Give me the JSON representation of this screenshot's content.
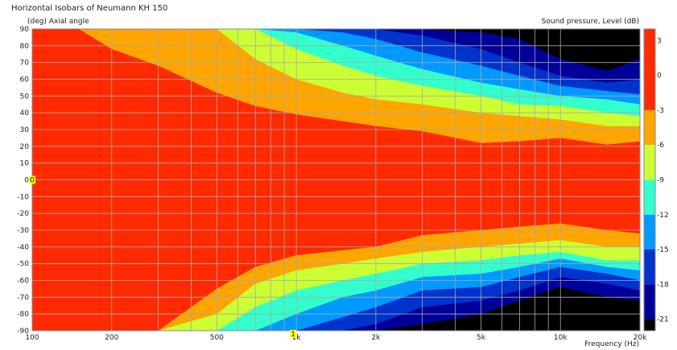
{
  "chart_data": {
    "type": "heatmap",
    "title": "Horizontal Isobars of Neumann KH 150",
    "ylabel": "(deg)  Axial angle",
    "xlabel": "Frequency  (Hz)",
    "colorbar_label": "Sound pressure, Level  (dB)",
    "x_scale": "log",
    "xlim": [
      100,
      20000
    ],
    "ylim": [
      -90,
      90
    ],
    "grid": true,
    "x_ticks": [
      {
        "value": 100,
        "label": "100"
      },
      {
        "value": 200,
        "label": "200"
      },
      {
        "value": 500,
        "label": "500"
      },
      {
        "value": 1000,
        "label": "1k"
      },
      {
        "value": 2000,
        "label": "2k"
      },
      {
        "value": 5000,
        "label": "5k"
      },
      {
        "value": 10000,
        "label": "10k"
      },
      {
        "value": 20000,
        "label": "20k"
      }
    ],
    "y_ticks": [
      90,
      80,
      70,
      60,
      50,
      40,
      30,
      20,
      10,
      0,
      -10,
      -20,
      -30,
      -40,
      -50,
      -60,
      -70,
      -80,
      -90
    ],
    "y_tick_labels": [
      "90",
      "80",
      "70",
      "60",
      "50",
      "40",
      "30",
      "20",
      "10",
      "0",
      "-10",
      "-20",
      "-30",
      "-40",
      "-50",
      "-60",
      "-70",
      "-80",
      "-90"
    ],
    "markers": [
      {
        "axis": "y",
        "value": 0,
        "label": "0"
      },
      {
        "axis": "x",
        "value": 1000,
        "label": "1"
      }
    ],
    "colorbar": {
      "range": [
        -22,
        4
      ],
      "ticks": [
        3,
        0,
        -3,
        -6,
        -9,
        -12,
        -15,
        -18,
        -21
      ],
      "tick_labels": [
        "3",
        "0",
        "-3",
        "-6",
        "-9",
        "-12",
        "-15",
        "-18",
        "-21"
      ]
    },
    "levels": [
      {
        "min": -3,
        "max": 4,
        "color": "#ff2a00"
      },
      {
        "min": -6,
        "max": -3,
        "color": "#ffa500"
      },
      {
        "min": -9,
        "max": -6,
        "color": "#ccff33"
      },
      {
        "min": -12,
        "max": -9,
        "color": "#33ffcc"
      },
      {
        "min": -15,
        "max": -12,
        "color": "#0099ff"
      },
      {
        "min": -18,
        "max": -15,
        "color": "#0033cc"
      },
      {
        "min": -21,
        "max": -18,
        "color": "#000099"
      },
      {
        "min": -99,
        "max": -21,
        "color": "#000000"
      }
    ],
    "upper_boundaries": {
      "freq": [
        100,
        150,
        200,
        300,
        500,
        700,
        1000,
        1500,
        2000,
        3000,
        5000,
        7000,
        10000,
        15000,
        20000
      ],
      "curves": [
        {
          "level": -3,
          "angles": [
            90,
            90,
            78,
            68,
            52,
            44,
            39,
            35,
            32,
            29,
            22,
            23,
            25,
            21,
            23
          ]
        },
        {
          "level": -6,
          "angles": [
            90,
            90,
            90,
            90,
            90,
            72,
            60,
            52,
            48,
            45,
            40,
            38,
            36,
            32,
            32
          ]
        },
        {
          "level": -9,
          "angles": [
            90,
            90,
            90,
            90,
            90,
            90,
            78,
            68,
            62,
            56,
            50,
            45,
            44,
            40,
            38
          ]
        },
        {
          "level": -12,
          "angles": [
            90,
            90,
            90,
            90,
            90,
            90,
            88,
            80,
            74,
            66,
            58,
            54,
            50,
            48,
            45
          ]
        },
        {
          "level": -15,
          "angles": [
            90,
            90,
            90,
            90,
            90,
            90,
            90,
            88,
            84,
            76,
            68,
            62,
            56,
            53,
            51
          ]
        },
        {
          "level": -18,
          "angles": [
            90,
            90,
            90,
            90,
            90,
            90,
            90,
            90,
            90,
            86,
            78,
            70,
            62,
            58,
            60
          ]
        },
        {
          "level": -21,
          "angles": [
            90,
            90,
            90,
            90,
            90,
            90,
            90,
            90,
            90,
            90,
            88,
            84,
            72,
            65,
            72
          ]
        }
      ]
    },
    "lower_boundaries": {
      "freq": [
        100,
        150,
        200,
        300,
        500,
        700,
        1000,
        1500,
        2000,
        3000,
        5000,
        7000,
        10000,
        15000,
        20000
      ],
      "curves": [
        {
          "level": -3,
          "angles": [
            -90,
            -90,
            -90,
            -90,
            -65,
            -52,
            -45,
            -42,
            -40,
            -33,
            -30,
            -28,
            -26,
            -30,
            -32
          ]
        },
        {
          "level": -6,
          "angles": [
            -90,
            -90,
            -90,
            -90,
            -80,
            -62,
            -54,
            -50,
            -47,
            -43,
            -40,
            -38,
            -36,
            -40,
            -40
          ]
        },
        {
          "level": -9,
          "angles": [
            -90,
            -90,
            -90,
            -90,
            -90,
            -76,
            -66,
            -60,
            -56,
            -50,
            -48,
            -45,
            -43,
            -48,
            -48
          ]
        },
        {
          "level": -12,
          "angles": [
            -90,
            -90,
            -90,
            -90,
            -90,
            -90,
            -80,
            -70,
            -66,
            -58,
            -56,
            -52,
            -47,
            -52,
            -54
          ]
        },
        {
          "level": -15,
          "angles": [
            -90,
            -90,
            -90,
            -90,
            -90,
            -90,
            -90,
            -82,
            -76,
            -66,
            -64,
            -58,
            -52,
            -56,
            -60
          ]
        },
        {
          "level": -18,
          "angles": [
            -90,
            -90,
            -90,
            -90,
            -90,
            -90,
            -90,
            -90,
            -86,
            -76,
            -72,
            -66,
            -58,
            -62,
            -66
          ]
        },
        {
          "level": -21,
          "angles": [
            -90,
            -90,
            -90,
            -90,
            -90,
            -90,
            -90,
            -90,
            -90,
            -86,
            -80,
            -72,
            -64,
            -70,
            -72
          ]
        }
      ]
    }
  }
}
